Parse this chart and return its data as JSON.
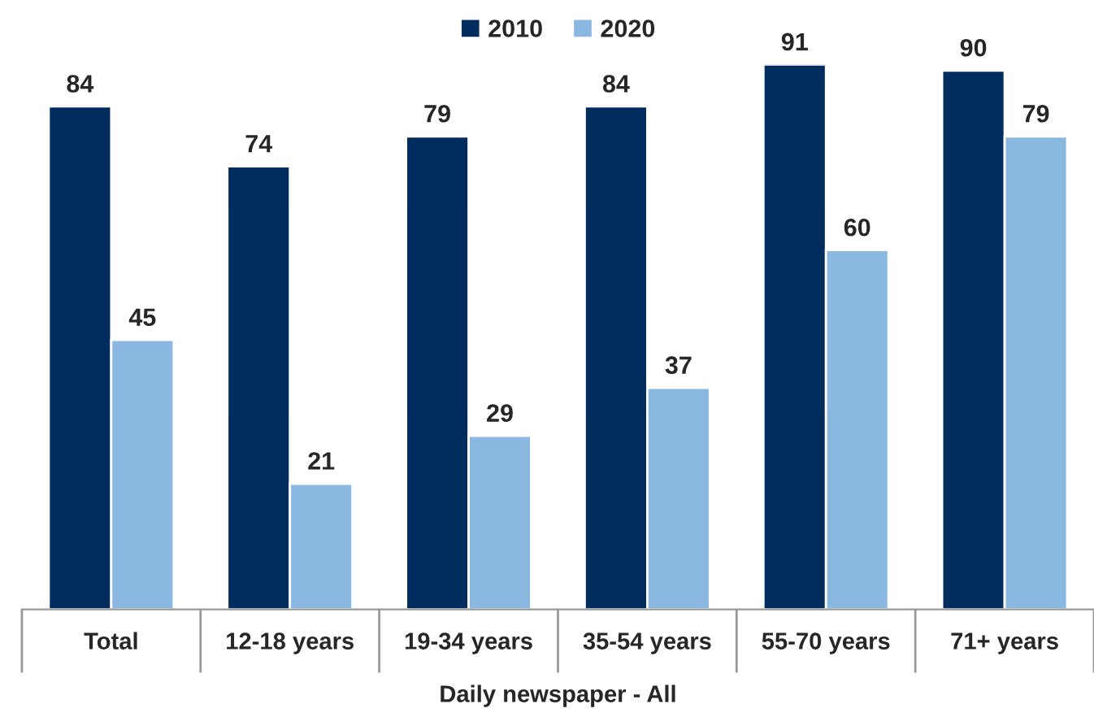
{
  "chart_data": {
    "type": "bar",
    "xlabel": "Daily newspaper - All",
    "categories": [
      "Total",
      "12-18 years",
      "19-34 years",
      "35-54 years",
      "55-70 years",
      "71+ years"
    ],
    "series": [
      {
        "name": "2010",
        "color": "#002d5e",
        "values": [
          84,
          74,
          79,
          84,
          91,
          90
        ]
      },
      {
        "name": "2020",
        "color": "#8bb8e0",
        "values": [
          45,
          21,
          29,
          37,
          60,
          79
        ]
      }
    ],
    "data_labels": true,
    "legend": "top",
    "grid": false
  }
}
